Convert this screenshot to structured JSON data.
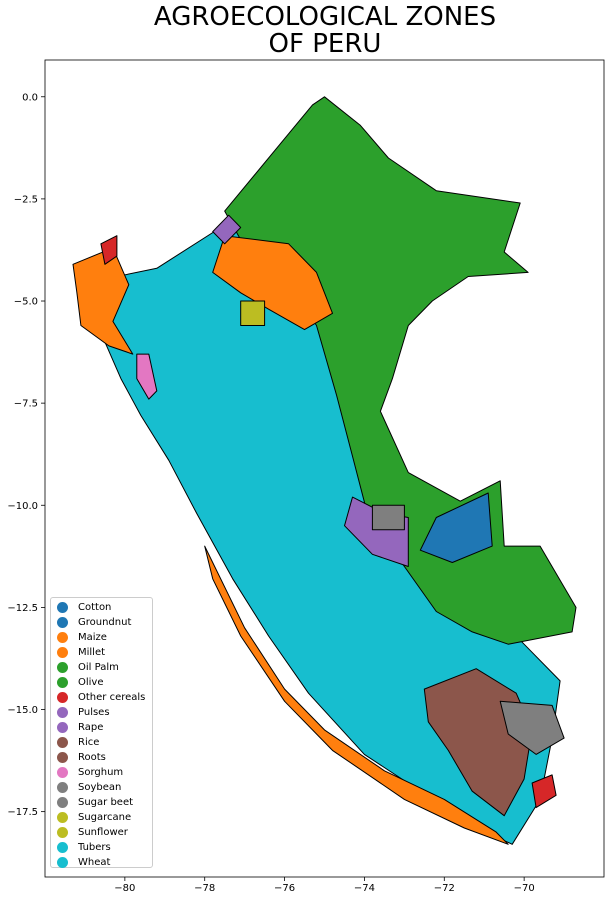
{
  "title": "AGROECOLOGICAL ZONES\nOF PERU",
  "chart_data": {
    "type": "map",
    "title": "AGROECOLOGICAL ZONES\nOF PERU",
    "xlim": [
      -82.0,
      -68.0
    ],
    "ylim": [
      -19.1,
      0.9
    ],
    "x_ticks": [
      -80,
      -78,
      -76,
      -74,
      -72,
      -70
    ],
    "x_tick_labels": [
      "−80",
      "−78",
      "−76",
      "−74",
      "−72",
      "−70"
    ],
    "y_ticks": [
      0.0,
      -2.5,
      -5.0,
      -7.5,
      -10.0,
      -12.5,
      -15.0,
      -17.5
    ],
    "y_tick_labels": [
      "0.0",
      "−2.5",
      "−5.0",
      "−7.5",
      "−10.0",
      "−12.5",
      "−15.0",
      "−17.5"
    ],
    "legend_position": "lower-left",
    "legend": [
      {
        "label": "Cotton",
        "color": "#1f77b4"
      },
      {
        "label": "Groundnut",
        "color": "#1f77b4"
      },
      {
        "label": "Maize",
        "color": "#ff7f0e"
      },
      {
        "label": "Millet",
        "color": "#ff7f0e"
      },
      {
        "label": "Oil Palm",
        "color": "#2ca02c"
      },
      {
        "label": "Olive",
        "color": "#2ca02c"
      },
      {
        "label": "Other cereals",
        "color": "#d62728"
      },
      {
        "label": "Pulses",
        "color": "#9467bd"
      },
      {
        "label": "Rape",
        "color": "#9467bd"
      },
      {
        "label": "Rice",
        "color": "#8c564b"
      },
      {
        "label": "Roots",
        "color": "#8c564b"
      },
      {
        "label": "Sorghum",
        "color": "#e377c2"
      },
      {
        "label": "Soybean",
        "color": "#7f7f7f"
      },
      {
        "label": "Sugar beet",
        "color": "#7f7f7f"
      },
      {
        "label": "Sugarcane",
        "color": "#bcbd22"
      },
      {
        "label": "Sunflower",
        "color": "#bcbd22"
      },
      {
        "label": "Tubers",
        "color": "#17becf"
      },
      {
        "label": "Wheat",
        "color": "#17becf"
      }
    ],
    "regions": [
      {
        "crop": "Wheat",
        "color": "#17becf",
        "points": [
          [
            -80.7,
            -4.5
          ],
          [
            -79.2,
            -4.2
          ],
          [
            -77.6,
            -3.2
          ],
          [
            -76.0,
            -3.4
          ],
          [
            -74.8,
            -4.1
          ],
          [
            -74.4,
            -5.5
          ],
          [
            -74.5,
            -7.3
          ],
          [
            -74.1,
            -8.7
          ],
          [
            -73.8,
            -10.2
          ],
          [
            -72.6,
            -11.2
          ],
          [
            -71.4,
            -12.0
          ],
          [
            -70.0,
            -13.4
          ],
          [
            -69.1,
            -14.3
          ],
          [
            -69.3,
            -15.7
          ],
          [
            -69.6,
            -17.2
          ],
          [
            -70.3,
            -18.3
          ],
          [
            -71.4,
            -17.8
          ],
          [
            -72.6,
            -17.0
          ],
          [
            -74.0,
            -16.1
          ],
          [
            -75.4,
            -14.6
          ],
          [
            -76.4,
            -13.2
          ],
          [
            -77.3,
            -11.8
          ],
          [
            -78.2,
            -10.2
          ],
          [
            -78.9,
            -8.9
          ],
          [
            -79.6,
            -7.8
          ],
          [
            -80.1,
            -6.9
          ],
          [
            -80.5,
            -6.0
          ]
        ]
      },
      {
        "crop": "Oil Palm",
        "color": "#2ca02c",
        "points": [
          [
            -77.5,
            -2.8
          ],
          [
            -75.3,
            -0.2
          ],
          [
            -75.0,
            0.0
          ],
          [
            -74.1,
            -0.7
          ],
          [
            -73.4,
            -1.5
          ],
          [
            -72.2,
            -2.3
          ],
          [
            -70.1,
            -2.6
          ],
          [
            -70.5,
            -3.8
          ],
          [
            -69.9,
            -4.3
          ],
          [
            -71.4,
            -4.4
          ],
          [
            -72.3,
            -5.0
          ],
          [
            -72.9,
            -5.6
          ],
          [
            -73.3,
            -6.9
          ],
          [
            -73.6,
            -7.7
          ],
          [
            -72.9,
            -9.2
          ],
          [
            -71.6,
            -9.9
          ],
          [
            -70.6,
            -9.4
          ],
          [
            -70.5,
            -11.0
          ],
          [
            -69.6,
            -11.0
          ],
          [
            -68.7,
            -12.5
          ],
          [
            -68.8,
            -13.1
          ],
          [
            -70.4,
            -13.4
          ],
          [
            -71.3,
            -13.1
          ],
          [
            -72.2,
            -12.6
          ],
          [
            -73.0,
            -11.5
          ],
          [
            -73.9,
            -10.3
          ],
          [
            -74.3,
            -8.8
          ],
          [
            -74.7,
            -7.3
          ],
          [
            -75.2,
            -5.6
          ],
          [
            -76.1,
            -4.3
          ],
          [
            -77.1,
            -3.5
          ]
        ]
      },
      {
        "crop": "Cotton",
        "color": "#1f77b4",
        "points": [
          [
            -72.2,
            -10.3
          ],
          [
            -70.9,
            -9.7
          ],
          [
            -70.8,
            -11.0
          ],
          [
            -71.8,
            -11.4
          ],
          [
            -72.6,
            -11.1
          ]
        ]
      },
      {
        "crop": "Maize",
        "color": "#ff7f0e",
        "points": [
          [
            -77.5,
            -3.4
          ],
          [
            -75.9,
            -3.6
          ],
          [
            -75.2,
            -4.3
          ],
          [
            -74.8,
            -5.3
          ],
          [
            -75.5,
            -5.7
          ],
          [
            -76.4,
            -5.2
          ],
          [
            -77.1,
            -4.8
          ],
          [
            -77.8,
            -4.3
          ]
        ]
      },
      {
        "crop": "Pulses",
        "color": "#9467bd",
        "points": [
          [
            -74.3,
            -9.8
          ],
          [
            -73.5,
            -10.2
          ],
          [
            -72.9,
            -10.3
          ],
          [
            -72.9,
            -11.5
          ],
          [
            -73.8,
            -11.2
          ],
          [
            -74.5,
            -10.5
          ]
        ]
      },
      {
        "crop": "Maize",
        "color": "#ff7f0e",
        "points": [
          [
            -81.3,
            -4.1
          ],
          [
            -80.3,
            -3.7
          ],
          [
            -79.9,
            -4.6
          ],
          [
            -80.3,
            -5.5
          ],
          [
            -79.8,
            -6.3
          ],
          [
            -80.4,
            -6.1
          ],
          [
            -81.1,
            -5.6
          ],
          [
            -81.2,
            -4.8
          ]
        ]
      },
      {
        "crop": "Maize",
        "color": "#ff7f0e",
        "points": [
          [
            -78.0,
            -11.0
          ],
          [
            -77.0,
            -13.0
          ],
          [
            -76.0,
            -14.5
          ],
          [
            -75.0,
            -15.5
          ],
          [
            -73.5,
            -16.5
          ],
          [
            -72.0,
            -17.2
          ],
          [
            -70.7,
            -18.0
          ],
          [
            -70.4,
            -18.3
          ],
          [
            -71.5,
            -17.9
          ],
          [
            -73.0,
            -17.2
          ],
          [
            -74.8,
            -16.0
          ],
          [
            -76.0,
            -14.8
          ],
          [
            -77.1,
            -13.2
          ],
          [
            -77.8,
            -11.8
          ]
        ]
      },
      {
        "crop": "Rice",
        "color": "#8c564b",
        "points": [
          [
            -72.5,
            -14.5
          ],
          [
            -71.2,
            -14.0
          ],
          [
            -70.2,
            -14.6
          ],
          [
            -69.8,
            -15.5
          ],
          [
            -70.0,
            -16.7
          ],
          [
            -70.5,
            -17.6
          ],
          [
            -71.3,
            -17.0
          ],
          [
            -71.9,
            -16.0
          ],
          [
            -72.4,
            -15.3
          ]
        ]
      },
      {
        "crop": "Sugar beet",
        "color": "#7f7f7f",
        "points": [
          [
            -70.6,
            -14.8
          ],
          [
            -69.3,
            -14.9
          ],
          [
            -69.0,
            -15.7
          ],
          [
            -69.7,
            -16.1
          ],
          [
            -70.4,
            -15.6
          ]
        ]
      },
      {
        "crop": "Sugar beet",
        "color": "#7f7f7f",
        "points": [
          [
            -73.8,
            -10.0
          ],
          [
            -73.0,
            -10.0
          ],
          [
            -73.0,
            -10.6
          ],
          [
            -73.8,
            -10.6
          ]
        ]
      },
      {
        "crop": "Sunflower",
        "color": "#bcbd22",
        "points": [
          [
            -77.1,
            -5.0
          ],
          [
            -76.5,
            -5.0
          ],
          [
            -76.5,
            -5.6
          ],
          [
            -77.1,
            -5.6
          ]
        ]
      },
      {
        "crop": "Other cereals",
        "color": "#d62728",
        "points": [
          [
            -80.6,
            -3.6
          ],
          [
            -80.2,
            -3.4
          ],
          [
            -80.2,
            -3.9
          ],
          [
            -80.5,
            -4.1
          ]
        ]
      },
      {
        "crop": "Other cereals",
        "color": "#d62728",
        "points": [
          [
            -69.8,
            -16.8
          ],
          [
            -69.3,
            -16.6
          ],
          [
            -69.2,
            -17.1
          ],
          [
            -69.7,
            -17.4
          ]
        ]
      },
      {
        "crop": "Sorghum",
        "color": "#e377c2",
        "points": [
          [
            -79.7,
            -6.3
          ],
          [
            -79.4,
            -6.3
          ],
          [
            -79.2,
            -7.2
          ],
          [
            -79.4,
            -7.4
          ],
          [
            -79.7,
            -6.9
          ]
        ]
      },
      {
        "crop": "Pulses",
        "color": "#9467bd",
        "points": [
          [
            -77.8,
            -3.3
          ],
          [
            -77.4,
            -2.9
          ],
          [
            -77.1,
            -3.2
          ],
          [
            -77.5,
            -3.6
          ]
        ]
      }
    ]
  }
}
